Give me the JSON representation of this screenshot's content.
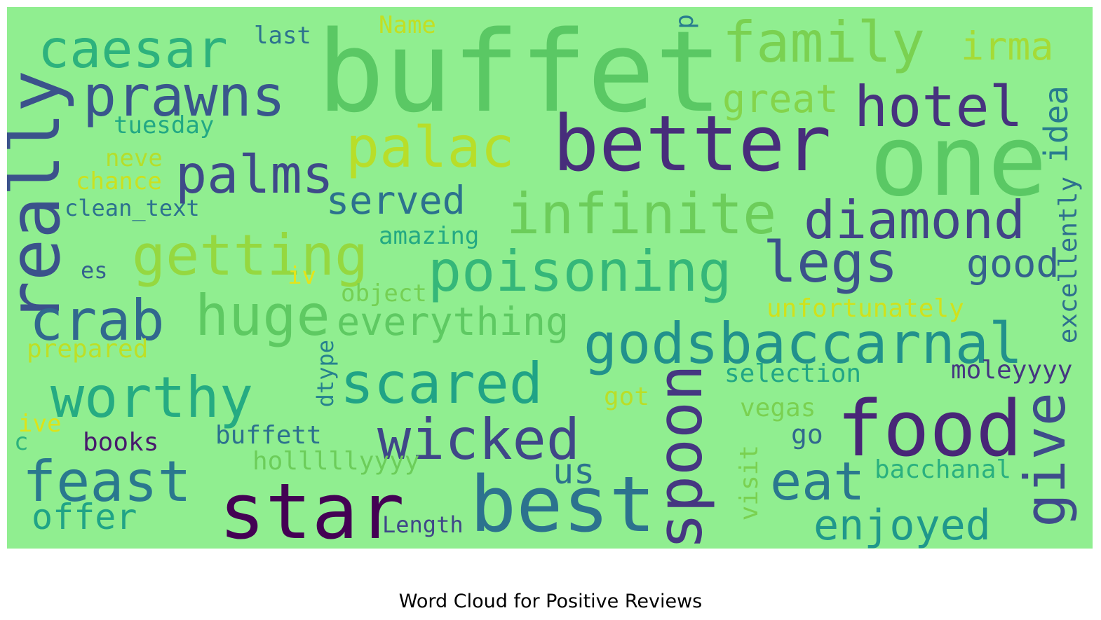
{
  "title": "Word Cloud for Positive Reviews",
  "background_color": "#90ee90",
  "chart_data": {
    "type": "wordcloud",
    "title": "Word Cloud for Positive Reviews",
    "words": [
      {
        "text": "buffet",
        "color": "#5ac864",
        "orientation": "horizontal"
      },
      {
        "text": "one",
        "color": "#5ac864",
        "orientation": "horizontal"
      },
      {
        "text": "better",
        "color": "#472d7b",
        "orientation": "horizontal"
      },
      {
        "text": "star",
        "color": "#440154",
        "orientation": "horizontal"
      },
      {
        "text": "best",
        "color": "#2c728e",
        "orientation": "horizontal"
      },
      {
        "text": "food",
        "color": "#482677",
        "orientation": "horizontal"
      },
      {
        "text": "family",
        "color": "#7ad151",
        "orientation": "horizontal"
      },
      {
        "text": "caesar",
        "color": "#2db27d",
        "orientation": "horizontal"
      },
      {
        "text": "prawns",
        "color": "#39568c",
        "orientation": "horizontal"
      },
      {
        "text": "palac",
        "color": "#b8de29",
        "orientation": "horizontal"
      },
      {
        "text": "palms",
        "color": "#3e4a89",
        "orientation": "horizontal"
      },
      {
        "text": "really",
        "color": "#3b528b",
        "orientation": "vertical"
      },
      {
        "text": "getting",
        "color": "#95d840",
        "orientation": "horizontal"
      },
      {
        "text": "infinite",
        "color": "#6ccd5a",
        "orientation": "horizontal"
      },
      {
        "text": "poisoning",
        "color": "#35b779",
        "orientation": "horizontal"
      },
      {
        "text": "diamond",
        "color": "#414487",
        "orientation": "horizontal"
      },
      {
        "text": "legs",
        "color": "#3b528b",
        "orientation": "horizontal"
      },
      {
        "text": "hotel",
        "color": "#46337e",
        "orientation": "horizontal"
      },
      {
        "text": "crab",
        "color": "#31688e",
        "orientation": "horizontal"
      },
      {
        "text": "huge",
        "color": "#5ec962",
        "orientation": "horizontal"
      },
      {
        "text": "godsbaccarnal",
        "color": "#21918c",
        "orientation": "horizontal"
      },
      {
        "text": "worthy",
        "color": "#25ab82",
        "orientation": "horizontal"
      },
      {
        "text": "scared",
        "color": "#20a386",
        "orientation": "horizontal"
      },
      {
        "text": "wicked",
        "color": "#3f4788",
        "orientation": "horizontal"
      },
      {
        "text": "feast",
        "color": "#2a788e",
        "orientation": "horizontal"
      },
      {
        "text": "spoon",
        "color": "#453781",
        "orientation": "vertical"
      },
      {
        "text": "eat",
        "color": "#2a788e",
        "orientation": "horizontal"
      },
      {
        "text": "give",
        "color": "#3e4c8a",
        "orientation": "vertical"
      },
      {
        "text": "enjoyed",
        "color": "#1f988b",
        "orientation": "horizontal"
      },
      {
        "text": "everything",
        "color": "#5ec962",
        "orientation": "horizontal"
      },
      {
        "text": "served",
        "color": "#2c718e",
        "orientation": "horizontal"
      },
      {
        "text": "good",
        "color": "#34618d",
        "orientation": "horizontal"
      },
      {
        "text": "great",
        "color": "#84d44b",
        "orientation": "horizontal"
      },
      {
        "text": "irma",
        "color": "#a5db36",
        "orientation": "horizontal"
      },
      {
        "text": "idea",
        "color": "#287c8e",
        "orientation": "vertical"
      },
      {
        "text": "excellently",
        "color": "#2e6f8e",
        "orientation": "vertical"
      },
      {
        "text": "offer",
        "color": "#20a486",
        "orientation": "horizontal"
      },
      {
        "text": "us",
        "color": "#2c718e",
        "orientation": "horizontal"
      },
      {
        "text": "Length",
        "color": "#3f4788",
        "orientation": "horizontal"
      },
      {
        "text": "selection",
        "color": "#21a685",
        "orientation": "horizontal"
      },
      {
        "text": "moleyyyy",
        "color": "#453781",
        "orientation": "horizontal"
      },
      {
        "text": "unfortunately",
        "color": "#d0e11c",
        "orientation": "horizontal"
      },
      {
        "text": "amazing",
        "color": "#23a983",
        "orientation": "horizontal"
      },
      {
        "text": "tuesday",
        "color": "#22a884",
        "orientation": "horizontal"
      },
      {
        "text": "last",
        "color": "#2c728e",
        "orientation": "horizontal"
      },
      {
        "text": "Name",
        "color": "#c2df23",
        "orientation": "horizontal"
      },
      {
        "text": "p",
        "color": "#287d8e",
        "orientation": "vertical"
      },
      {
        "text": "neve",
        "color": "#b5de2b",
        "orientation": "horizontal"
      },
      {
        "text": "chance",
        "color": "#cae11f",
        "orientation": "horizontal"
      },
      {
        "text": "clean_text",
        "color": "#2d718e",
        "orientation": "horizontal"
      },
      {
        "text": "es",
        "color": "#34618d",
        "orientation": "horizontal"
      },
      {
        "text": "iv",
        "color": "#e5e419",
        "orientation": "horizontal"
      },
      {
        "text": "object",
        "color": "#75d054",
        "orientation": "horizontal"
      },
      {
        "text": "prepared",
        "color": "#bddf26",
        "orientation": "horizontal"
      },
      {
        "text": "dtype",
        "color": "#26818e",
        "orientation": "vertical"
      },
      {
        "text": "got",
        "color": "#bade28",
        "orientation": "horizontal"
      },
      {
        "text": "vegas",
        "color": "#7ad151",
        "orientation": "horizontal"
      },
      {
        "text": "go",
        "color": "#31688e",
        "orientation": "horizontal"
      },
      {
        "text": "ive",
        "color": "#dde318",
        "orientation": "horizontal"
      },
      {
        "text": "c",
        "color": "#2db27d",
        "orientation": "horizontal"
      },
      {
        "text": "books",
        "color": "#481a6c",
        "orientation": "horizontal"
      },
      {
        "text": "buffett",
        "color": "#2c718e",
        "orientation": "horizontal"
      },
      {
        "text": "holllllyyyy",
        "color": "#6ccd5a",
        "orientation": "horizontal"
      },
      {
        "text": "visit",
        "color": "#7ad151",
        "orientation": "vertical"
      },
      {
        "text": "bacchanal",
        "color": "#2ab07f",
        "orientation": "horizontal"
      }
    ]
  }
}
